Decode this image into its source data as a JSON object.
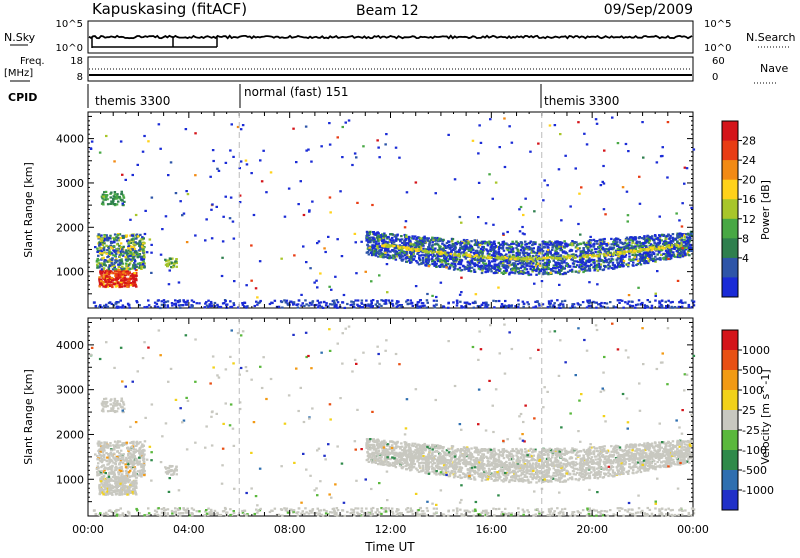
{
  "header": {
    "station": "Kapuskasing (fitACF)",
    "beam": "Beam 12",
    "date": "09/Sep/2009"
  },
  "noise_panel": {
    "left_label": "N.Sky",
    "right_label": "N.Search",
    "left_ticks": [
      "10^5",
      "10^0"
    ],
    "right_ticks": [
      "10^5",
      "10^0"
    ]
  },
  "freq_panel": {
    "left_label_1": "Freq.",
    "left_label_2": "[MHz]",
    "right_label": "Nave",
    "left_ticks": [
      "18",
      "8"
    ],
    "right_ticks": [
      "60",
      "0"
    ]
  },
  "cpid": {
    "label": "CPID",
    "segments": [
      {
        "start_hour": 0.0,
        "text": "themis 3300"
      },
      {
        "start_hour": 6.0,
        "text": "normal (fast) 151"
      },
      {
        "start_hour": 18.0,
        "text": "themis 3300"
      }
    ]
  },
  "x_axis": {
    "title": "Time UT",
    "ticks": [
      "00:00",
      "04:00",
      "08:00",
      "12:00",
      "16:00",
      "20:00",
      "00:00"
    ],
    "range_hours": [
      0,
      24
    ]
  },
  "power_panel": {
    "ylabel": "Slant Range [km]",
    "yticks": [
      "1000",
      "2000",
      "3000",
      "4000"
    ],
    "colorbar_label": "Power [dB]",
    "colorbar_ticks": [
      "28",
      "24",
      "20",
      "16",
      "12",
      "8",
      "4"
    ]
  },
  "velocity_panel": {
    "ylabel": "Slant Range [km]",
    "yticks": [
      "1000",
      "2000",
      "3000",
      "4000"
    ],
    "colorbar_label": "Velocity [m s^-1]",
    "colorbar_ticks": [
      "1000",
      "500",
      "100",
      "25",
      "-25",
      "-100",
      "-500",
      "-1000"
    ]
  },
  "chart_data": {
    "type": "heatmap",
    "x_range_hours": [
      0,
      24
    ],
    "y_range_km": [
      180,
      4600
    ],
    "power_scale_db": [
      0,
      30
    ],
    "power_colors": [
      "#1a2bd6",
      "#2e55a8",
      "#2f7f4e",
      "#48a844",
      "#a8c62a",
      "#ffd21a",
      "#f28a14",
      "#e83c14",
      "#d4141a"
    ],
    "velocity_colors": [
      "#2030c8",
      "#2f6fb0",
      "#2f8a4a",
      "#5ab83c",
      "#c8c8c0",
      "#f2d21a",
      "#f29a14",
      "#e85014",
      "#d4141a"
    ],
    "time_markers_hours": [
      6.0,
      18.0
    ],
    "echo_regions": [
      {
        "name": "early near-range",
        "t": [
          0.4,
          1.9
        ],
        "range_km": [
          650,
          1050
        ],
        "power_db": 25,
        "velocity": "near-zero"
      },
      {
        "name": "early mid-range",
        "t": [
          0.3,
          2.2
        ],
        "range_km": [
          1050,
          1850
        ],
        "power_db": 14,
        "velocity": "near-zero"
      },
      {
        "name": "early far patch",
        "t": [
          0.5,
          1.4
        ],
        "range_km": [
          2500,
          2800
        ],
        "power_db": 8,
        "velocity": "near-zero"
      },
      {
        "name": "small patch",
        "t": [
          3.0,
          3.5
        ],
        "range_km": [
          1100,
          1300
        ],
        "power_db": 10,
        "velocity": "near-zero"
      },
      {
        "name": "ground scatter band",
        "t": [
          11.0,
          23.9
        ],
        "range_km": [
          900,
          2200
        ],
        "power_db": 12,
        "velocity": "near-zero"
      },
      {
        "name": "near-range strip",
        "t": [
          0.0,
          24.0
        ],
        "range_km": [
          180,
          360
        ],
        "power_db": 6,
        "velocity": "near-zero"
      }
    ]
  }
}
